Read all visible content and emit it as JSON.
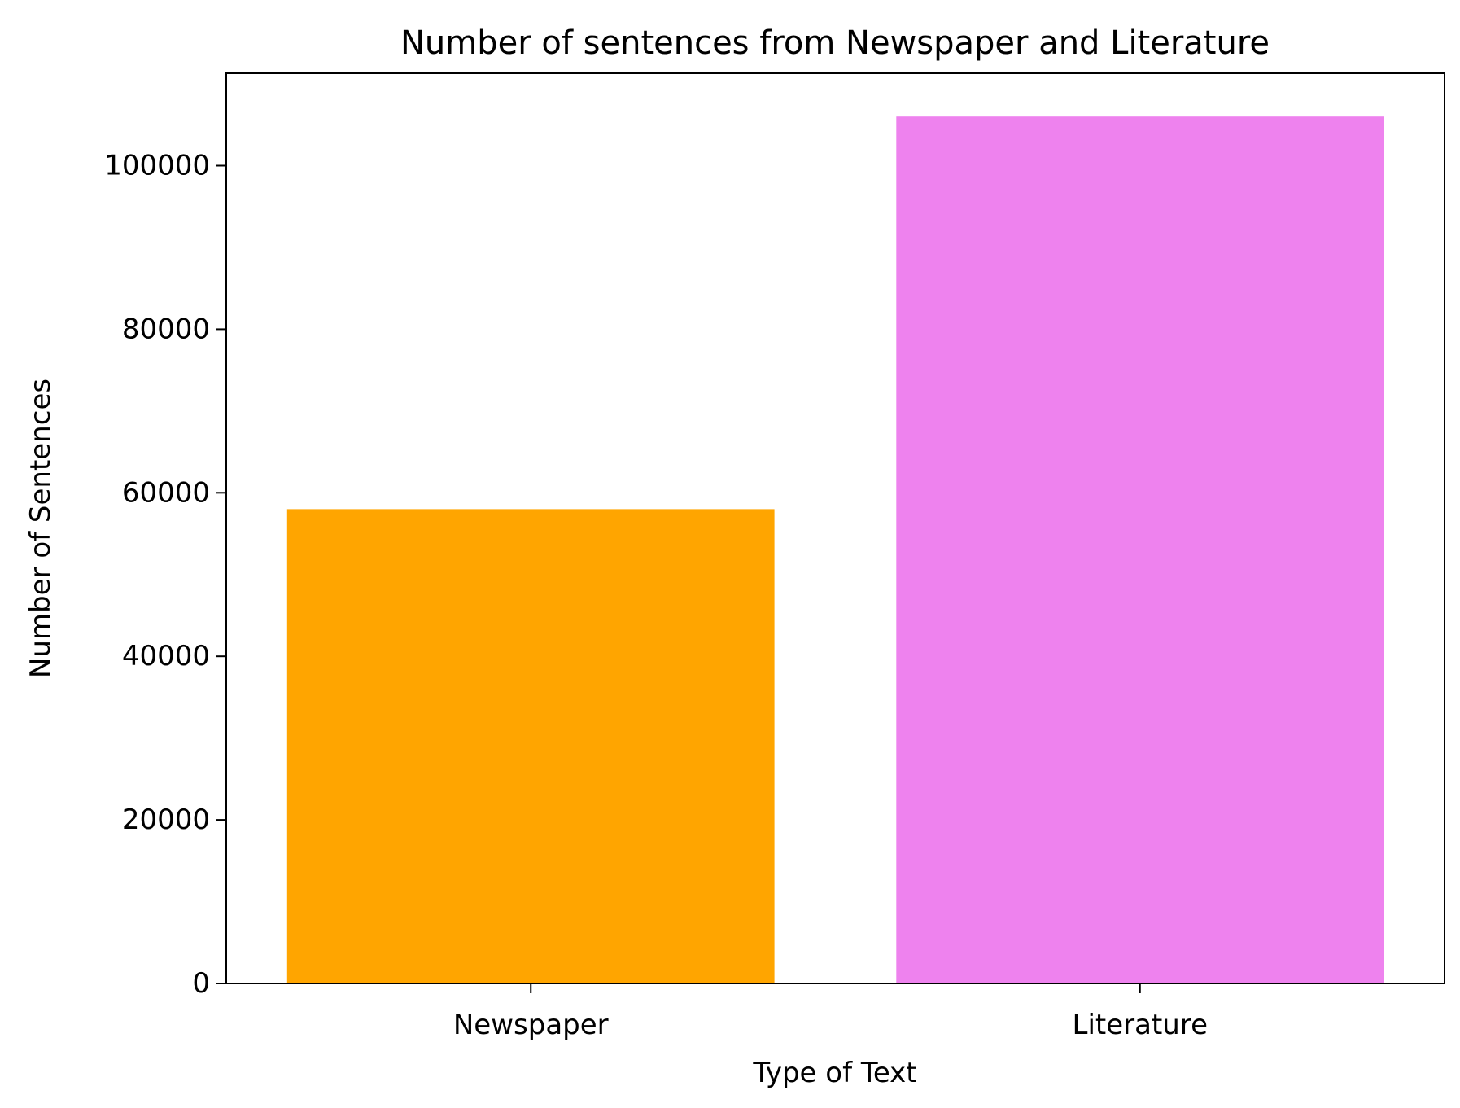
{
  "chart_data": {
    "type": "bar",
    "title": "Number of sentences from Newspaper and Literature",
    "xlabel": "Type of Text",
    "ylabel": "Number of Sentences",
    "categories": [
      "Newspaper",
      "Literature"
    ],
    "values": [
      58000,
      106000
    ],
    "colors": [
      "#FFA500",
      "#EE82EE"
    ],
    "ylim": [
      0,
      111300
    ],
    "yticks": [
      0,
      20000,
      40000,
      60000,
      80000,
      100000
    ],
    "ytick_labels": [
      "0",
      "20000",
      "40000",
      "60000",
      "80000",
      "100000"
    ],
    "grid": false,
    "legend": "none"
  }
}
